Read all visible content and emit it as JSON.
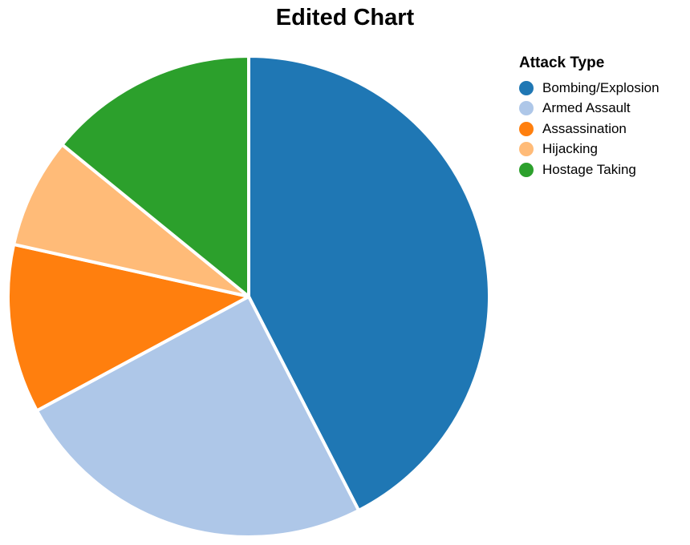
{
  "chart_data": {
    "type": "pie",
    "title": "Edited Chart",
    "legend_title": "Attack Type",
    "legend_position": "top-right",
    "categories": [
      "Bombing/Explosion",
      "Armed Assault",
      "Assassination",
      "Hijacking",
      "Hostage Taking"
    ],
    "values": [
      43,
      25,
      11.5,
      7.5,
      14.3
    ],
    "colors": [
      "#1f77b4",
      "#aec7e8",
      "#ff7f0e",
      "#ffbb78",
      "#2ca02c"
    ]
  }
}
